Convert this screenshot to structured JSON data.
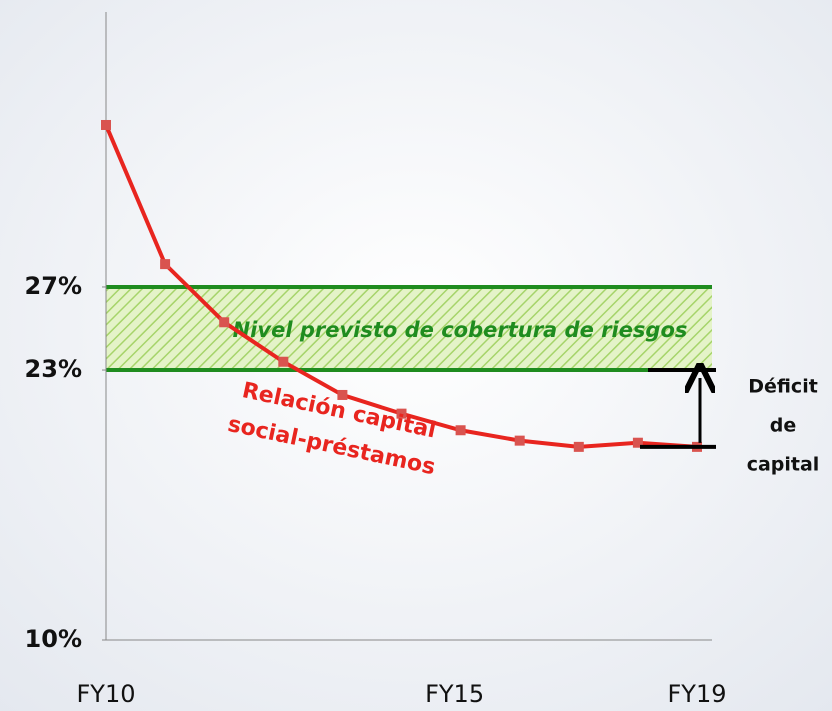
{
  "chart_data": {
    "type": "line",
    "categories": [
      "FY10",
      null,
      null,
      null,
      null,
      null,
      "FY15",
      null,
      null,
      null,
      "FY19"
    ],
    "series": [
      {
        "color": "#e8251f",
        "marker_color": "#d9534f",
        "values": [
          34.8,
          28.1,
          25.3,
          23.4,
          21.8,
          20.9,
          20.1,
          19.6,
          19.3,
          19.5,
          19.3
        ]
      }
    ],
    "line_label": [
      "Relación capital",
      "social-préstamos"
    ],
    "ylim": [
      10,
      40
    ],
    "yticks": [
      {
        "value": 10,
        "label": "10%"
      },
      {
        "value": 23,
        "label": "23%"
      },
      {
        "value": 27,
        "label": "27%"
      }
    ],
    "band": {
      "from": 23,
      "to": 27,
      "color": "#1f8c1f",
      "label": "Nivel previsto de cobertura de riesgos"
    },
    "deficit_label": [
      "Déficit",
      "de",
      "capital"
    ]
  }
}
